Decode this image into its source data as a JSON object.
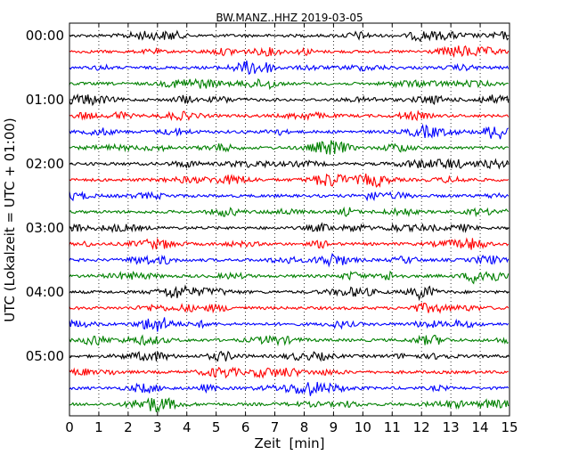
{
  "chart_data": {
    "type": "line",
    "title": "BW.MANZ..HHZ 2019-03-05",
    "xlabel": "Zeit  [min]",
    "ylabel": "UTC (Lokalzeit = UTC + 01:00)",
    "xlim": [
      0,
      15
    ],
    "x_ticks": [
      "0",
      "1",
      "2",
      "3",
      "4",
      "5",
      "6",
      "7",
      "8",
      "9",
      "10",
      "11",
      "12",
      "13",
      "14",
      "15"
    ],
    "y_ticks": [
      "00:00",
      "01:00",
      "02:00",
      "03:00",
      "04:00",
      "05:00"
    ],
    "grid": "vertical dotted lines at each minute",
    "trace_colors": [
      "#000000",
      "#ff0000",
      "#0000ff",
      "#008000"
    ],
    "traces_count": 24,
    "trace_interval_minutes": 15
  }
}
